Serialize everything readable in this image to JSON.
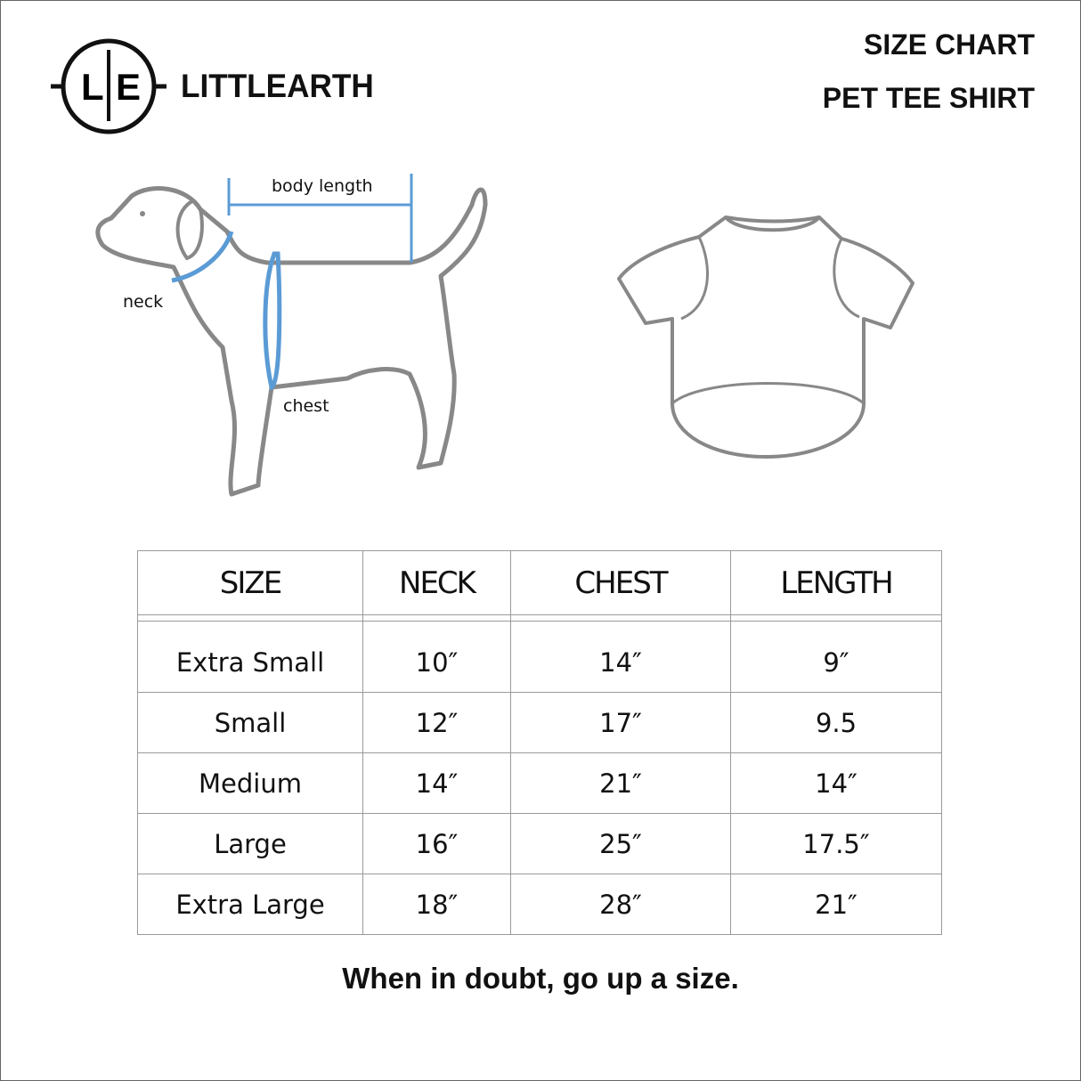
{
  "brand": {
    "name": "LITTLEARTH",
    "logo_letters": "L|E"
  },
  "header": {
    "line1": "SIZE CHART",
    "line2": "PET TEE SHIRT"
  },
  "diagram": {
    "body_length": "body length",
    "neck": "neck",
    "chest": "chest",
    "accent": "#5b9bd5",
    "outline": "#888888"
  },
  "table": {
    "headers": [
      "SIZE",
      "NECK",
      "CHEST",
      "LENGTH"
    ],
    "rows": [
      [
        "Extra Small",
        "10″",
        "14″",
        "9″"
      ],
      [
        "Small",
        "12″",
        "17″",
        "9.5"
      ],
      [
        "Medium",
        "14″",
        "21″",
        "14″"
      ],
      [
        "Large",
        "16″",
        "25″",
        "17.5″"
      ],
      [
        "Extra Large",
        "18″",
        "28″",
        "21″"
      ]
    ]
  },
  "footer": "When in doubt, go up a size."
}
